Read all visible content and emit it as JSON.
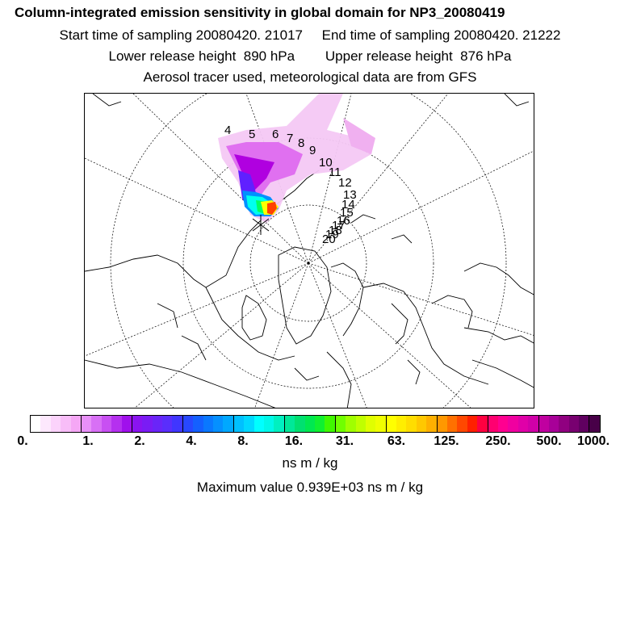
{
  "header": {
    "title": "Column-integrated emission sensitivity in global domain for NP3_20080419",
    "line2": "Start time of sampling 20080420. 21017     End time of sampling 20080420. 21222",
    "line3": "Lower release height  890 hPa        Upper release height  876 hPa",
    "line4": "Aerosol tracer used, meteorological data are from GFS"
  },
  "map": {
    "trajectory_labels": [
      "4",
      "5",
      "6",
      "7",
      "8",
      "9",
      "10",
      "11",
      "12",
      "13",
      "14",
      "15",
      "16",
      "17",
      "18",
      "19",
      "20"
    ],
    "plume_colors": [
      "#f4c8f4",
      "#e070f0",
      "#b000e0",
      "#6020ff",
      "#0090ff",
      "#00ffee",
      "#00ff60",
      "#ffff00",
      "#ff4000"
    ]
  },
  "colorbar": {
    "colors": [
      "#ffffff",
      "#fde8fd",
      "#fbd3fb",
      "#f8bdf8",
      "#f5a7f5",
      "#e890f8",
      "#d870f5",
      "#c850f2",
      "#b530ef",
      "#a010ec",
      "#8a14f0",
      "#7a1cf4",
      "#6a25f8",
      "#5a2efc",
      "#4036ff",
      "#2848ff",
      "#1460ff",
      "#0a78ff",
      "#0590ff",
      "#00a8ff",
      "#00c0ff",
      "#00d8ff",
      "#00ffff",
      "#00f8e8",
      "#00f0c0",
      "#00e898",
      "#00e070",
      "#00e850",
      "#10f030",
      "#40f800",
      "#70ff00",
      "#a0ff00",
      "#c0ff00",
      "#e0ff00",
      "#f0ff00",
      "#ffff00",
      "#ffee00",
      "#ffdd00",
      "#ffc800",
      "#ffb000",
      "#ff9800",
      "#ff7000",
      "#ff4800",
      "#ff2000",
      "#ff0040",
      "#ff0070",
      "#ff0090",
      "#f000a0",
      "#e000a8",
      "#d000a8",
      "#c000a0",
      "#a80098",
      "#900080",
      "#780070",
      "#600060",
      "#480048"
    ],
    "ticks": [
      "0.",
      "1.",
      "2.",
      "4.",
      "8.",
      "16.",
      "31.",
      "63.",
      "125.",
      "250.",
      "500.",
      "1000."
    ],
    "units": "ns m / kg",
    "max_value_text": "Maximum value  0.939E+03 ns m / kg"
  }
}
